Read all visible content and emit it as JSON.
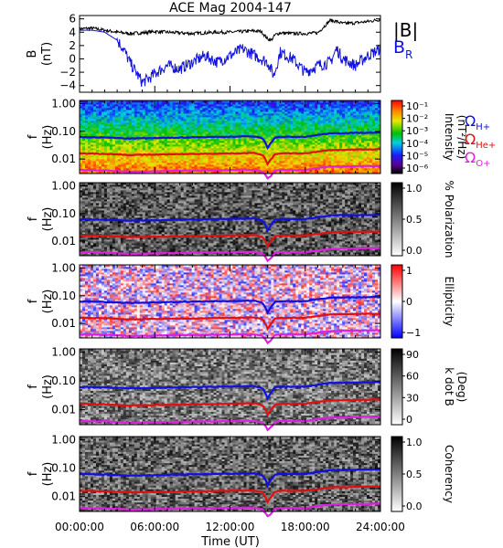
{
  "chart_data": [
    {
      "type": "line",
      "title": "ACE Mag 2004-147",
      "ylabel": "B",
      "yunit": "(nT)",
      "ylim": [
        -5,
        6.5
      ],
      "yticks": [
        6,
        4,
        2,
        0,
        -2,
        -4
      ],
      "xlim": [
        0,
        24
      ],
      "series": [
        {
          "name": "|B|",
          "color": "#000000",
          "x": [
            0,
            1,
            2,
            3,
            4,
            5,
            6,
            7,
            8,
            9,
            10,
            11,
            12,
            13,
            14,
            14.5,
            15,
            15.3,
            15.6,
            16,
            17,
            18,
            19,
            20,
            20.5,
            21,
            22,
            23,
            24
          ],
          "values": [
            4.5,
            4.6,
            4.3,
            4.0,
            3.8,
            3.9,
            4.1,
            4.0,
            3.9,
            3.8,
            3.9,
            4.0,
            4.0,
            4.1,
            4.2,
            4.1,
            3.0,
            2.8,
            3.6,
            3.9,
            3.8,
            3.8,
            3.9,
            5.8,
            5.6,
            5.3,
            5.4,
            5.6,
            5.9
          ]
        },
        {
          "name": "BR",
          "color": "#1010e0",
          "x": [
            0,
            1,
            2,
            3,
            3.5,
            4,
            4.5,
            5,
            5.5,
            6,
            7,
            8,
            9,
            10,
            11,
            12,
            13,
            14,
            15,
            15.5,
            16,
            17,
            18,
            19,
            20,
            20.5,
            21,
            22,
            23,
            24
          ],
          "values": [
            4.3,
            4.3,
            4.0,
            2.8,
            1.5,
            -0.5,
            -2.0,
            -3.5,
            -3.0,
            -2.2,
            -1.0,
            -1.5,
            -0.5,
            0.5,
            -0.5,
            0.5,
            1.5,
            0.5,
            -0.5,
            -2.5,
            1.0,
            0.0,
            -2.0,
            -1.0,
            -0.5,
            1.5,
            0.0,
            -1.0,
            0.5,
            1.5
          ]
        }
      ],
      "legend": {
        "placement": "right",
        "items": [
          {
            "label": "|B|"
          },
          {
            "label": "B",
            "sub": "R"
          }
        ]
      }
    },
    {
      "type": "heatmap",
      "ylabel": "f",
      "yunit": "(Hz)",
      "yscale": "log",
      "ylim": [
        0.003,
        1.3
      ],
      "yticks": [
        "1.00",
        "0.10",
        "0.01"
      ],
      "colorbar": {
        "label": "Intensity",
        "unit": "(nT²/Hz)",
        "scale": "log",
        "ticks": [
          "10⁻¹",
          "10⁻²",
          "10⁻³",
          "10⁻⁴",
          "10⁻⁵",
          "10⁻⁶"
        ],
        "colormap": "rainbow"
      },
      "legend": {
        "placement": "right",
        "items": [
          {
            "label": "Ω",
            "sub": "H+",
            "color": "#1010e0"
          },
          {
            "label": "Ω",
            "sub": "He+",
            "color": "#e01010"
          },
          {
            "label": "Ω",
            "sub": "O+",
            "color": "#e020e0"
          }
        ]
      }
    },
    {
      "type": "heatmap",
      "ylabel": "f",
      "yunit": "(Hz)",
      "yscale": "log",
      "ylim": [
        0.003,
        1.3
      ],
      "yticks": [
        "1.00",
        "0.10",
        "0.01"
      ],
      "colorbar": {
        "label": "% Polarization",
        "unit": "",
        "scale": "linear",
        "ticks": [
          "1.0",
          "0.5",
          "0.0"
        ],
        "colormap": "grayscale"
      }
    },
    {
      "type": "heatmap",
      "ylabel": "f",
      "yunit": "(Hz)",
      "yscale": "log",
      "ylim": [
        0.003,
        1.3
      ],
      "yticks": [
        "1.00",
        "0.10",
        "0.01"
      ],
      "colorbar": {
        "label": "Ellipticity",
        "unit": "",
        "scale": "linear",
        "ticks": [
          "1",
          "0",
          "−1"
        ],
        "colormap": "bluewhitered"
      }
    },
    {
      "type": "heatmap",
      "ylabel": "f",
      "yunit": "(Hz)",
      "yscale": "log",
      "ylim": [
        0.003,
        1.3
      ],
      "yticks": [
        "1.00",
        "0.10",
        "0.01"
      ],
      "colorbar": {
        "label": "k dot B",
        "unit": "(Deg)",
        "scale": "linear",
        "ticks": [
          "90",
          "60",
          "30",
          "0"
        ],
        "colormap": "grayscale"
      }
    },
    {
      "type": "heatmap",
      "ylabel": "f",
      "yunit": "(Hz)",
      "yscale": "log",
      "ylim": [
        0.003,
        1.3
      ],
      "yticks": [
        "1.00",
        "0.10",
        "0.01"
      ],
      "colorbar": {
        "label": "Coherency",
        "unit": "",
        "scale": "linear",
        "ticks": [
          "1.0",
          "0.5",
          "0.0"
        ],
        "colormap": "grayscale"
      }
    }
  ],
  "gyrofrequency_lines": {
    "x": [
      0,
      2,
      4,
      6,
      8,
      10,
      12,
      14,
      14.6,
      15,
      15.3,
      15.6,
      16,
      18,
      20,
      22,
      24
    ],
    "H+": [
      0.062,
      0.06,
      0.055,
      0.057,
      0.06,
      0.062,
      0.064,
      0.066,
      0.055,
      0.025,
      0.04,
      0.06,
      0.063,
      0.063,
      0.085,
      0.088,
      0.09
    ],
    "He+": [
      0.016,
      0.0155,
      0.014,
      0.0145,
      0.015,
      0.0155,
      0.016,
      0.0165,
      0.014,
      0.0065,
      0.01,
      0.015,
      0.016,
      0.016,
      0.021,
      0.022,
      0.0225
    ],
    "O+": [
      0.004,
      0.0039,
      0.0035,
      0.0036,
      0.0038,
      0.0039,
      0.004,
      0.0041,
      0.0035,
      0.002,
      0.0025,
      0.0038,
      0.004,
      0.004,
      0.0053,
      0.0055,
      0.0056
    ]
  },
  "xaxis": {
    "label": "Time (UT)",
    "ticks": [
      {
        "value": 0,
        "label": "00:00:00"
      },
      {
        "value": 6,
        "label": "06:00:00"
      },
      {
        "value": 12,
        "label": "12:00:00"
      },
      {
        "value": 18,
        "label": "18:00:00"
      },
      {
        "value": 24,
        "label": "24:00:00"
      }
    ]
  },
  "colors": {
    "H+": "#1010e0",
    "He+": "#e01010",
    "O+": "#e020e0",
    "B": "#000000",
    "BR": "#1010e0"
  }
}
